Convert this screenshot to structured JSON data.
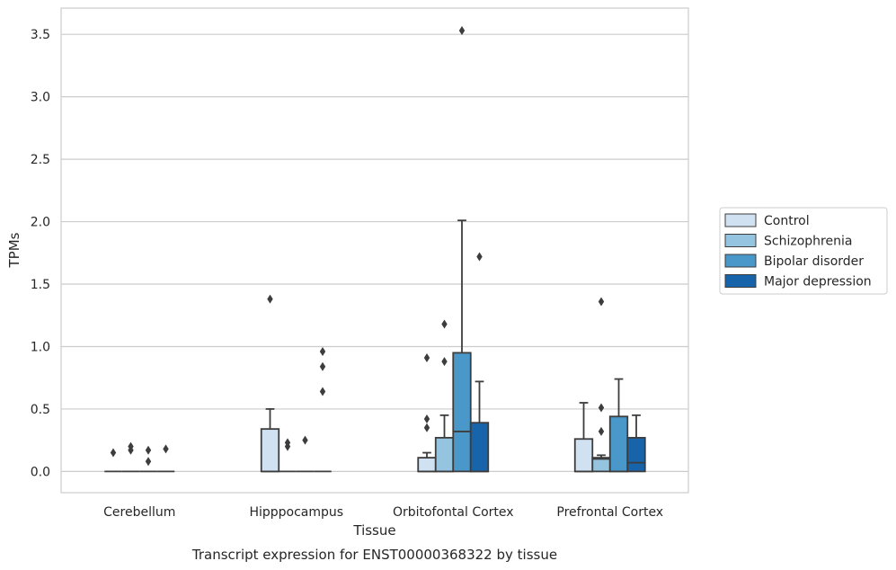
{
  "chart_data": {
    "type": "box",
    "caption": "Transcript expression for ENST00000368322 by tissue",
    "xlabel": "Tissue",
    "ylabel": "TPMs",
    "ylim": [
      -0.17,
      3.71
    ],
    "yticks": [
      0.0,
      0.5,
      1.0,
      1.5,
      2.0,
      2.5,
      3.0,
      3.5
    ],
    "ytick_labels": [
      "0.0",
      "0.5",
      "1.0",
      "1.5",
      "2.0",
      "2.5",
      "3.0",
      "3.5"
    ],
    "grid": "horizontal",
    "legend_position": "right",
    "categories": [
      "Cerebellum",
      "Hipppocampus",
      "Orbitofontal Cortex",
      "Prefrontal Cortex"
    ],
    "series": [
      {
        "name": "Control",
        "color": "#d0e1f2",
        "boxes": [
          {
            "q1": 0,
            "median": 0,
            "q3": 0,
            "whislo": 0,
            "whishi": 0,
            "fliers": [
              0.15
            ]
          },
          {
            "q1": 0,
            "median": 0,
            "q3": 0.34,
            "whislo": 0,
            "whishi": 0.5,
            "fliers": [
              1.38
            ]
          },
          {
            "q1": 0,
            "median": 0,
            "q3": 0.11,
            "whislo": 0,
            "whishi": 0.15,
            "fliers": [
              0.35,
              0.42,
              0.91
            ]
          },
          {
            "q1": 0,
            "median": 0,
            "q3": 0.26,
            "whislo": 0,
            "whishi": 0.55,
            "fliers": []
          }
        ]
      },
      {
        "name": "Schizophrenia",
        "color": "#94c4df",
        "boxes": [
          {
            "q1": 0,
            "median": 0,
            "q3": 0,
            "whislo": 0,
            "whishi": 0,
            "fliers": [
              0.17,
              0.2
            ]
          },
          {
            "q1": 0,
            "median": 0,
            "q3": 0,
            "whislo": 0,
            "whishi": 0,
            "fliers": [
              0.2,
              0.23
            ]
          },
          {
            "q1": 0,
            "median": 0,
            "q3": 0.27,
            "whislo": 0,
            "whishi": 0.45,
            "fliers": [
              0.88,
              1.18
            ]
          },
          {
            "q1": 0,
            "median": 0.1,
            "q3": 0.11,
            "whislo": 0,
            "whishi": 0.13,
            "fliers": [
              0.32,
              0.51,
              1.36
            ]
          }
        ]
      },
      {
        "name": "Bipolar disorder",
        "color": "#4a98c9",
        "boxes": [
          {
            "q1": 0,
            "median": 0,
            "q3": 0,
            "whislo": 0,
            "whishi": 0,
            "fliers": [
              0.08,
              0.17
            ]
          },
          {
            "q1": 0,
            "median": 0,
            "q3": 0,
            "whislo": 0,
            "whishi": 0,
            "fliers": [
              0.25
            ]
          },
          {
            "q1": 0,
            "median": 0.32,
            "q3": 0.95,
            "whislo": 0,
            "whishi": 2.01,
            "fliers": [
              3.53
            ]
          },
          {
            "q1": 0,
            "median": 0,
            "q3": 0.44,
            "whislo": 0,
            "whishi": 0.74,
            "fliers": []
          }
        ]
      },
      {
        "name": "Major depression",
        "color": "#1764ab",
        "boxes": [
          {
            "q1": 0,
            "median": 0,
            "q3": 0,
            "whislo": 0,
            "whishi": 0,
            "fliers": [
              0.18
            ]
          },
          {
            "q1": 0,
            "median": 0,
            "q3": 0,
            "whislo": 0,
            "whishi": 0,
            "fliers": [
              0.64,
              0.84,
              0.96
            ]
          },
          {
            "q1": 0,
            "median": 0,
            "q3": 0.39,
            "whislo": 0,
            "whishi": 0.72,
            "fliers": [
              1.72
            ]
          },
          {
            "q1": 0,
            "median": 0.07,
            "q3": 0.27,
            "whislo": 0,
            "whishi": 0.45,
            "fliers": []
          }
        ]
      }
    ]
  }
}
